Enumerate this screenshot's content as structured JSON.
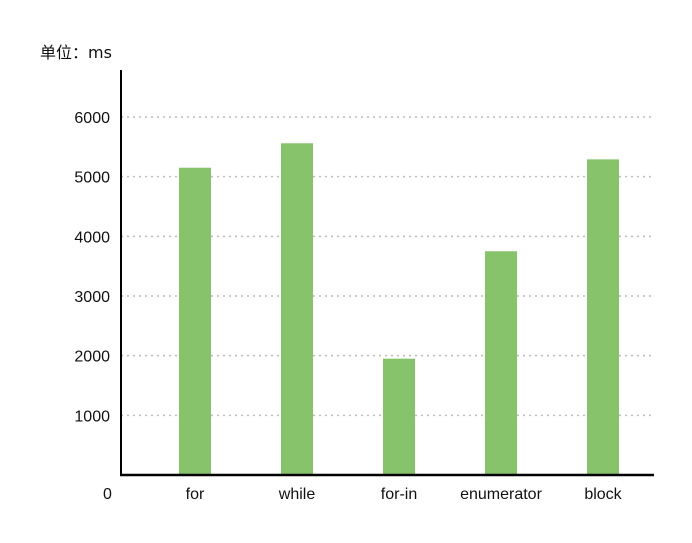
{
  "chart_data": {
    "type": "bar",
    "unit_label": "单位：ms",
    "categories": [
      "for",
      "while",
      "for-in",
      "enumerator",
      "block"
    ],
    "values": [
      5150,
      5560,
      1950,
      3750,
      5290
    ],
    "yticks": [
      1000,
      2000,
      3000,
      4000,
      5000,
      6000
    ],
    "origin_label": "0",
    "ylim": [
      0,
      6700
    ],
    "grid": "dotted horizontal",
    "bar_color": "#87c36b",
    "axis_color": "#000000",
    "grid_color": "#bbbbbb"
  }
}
